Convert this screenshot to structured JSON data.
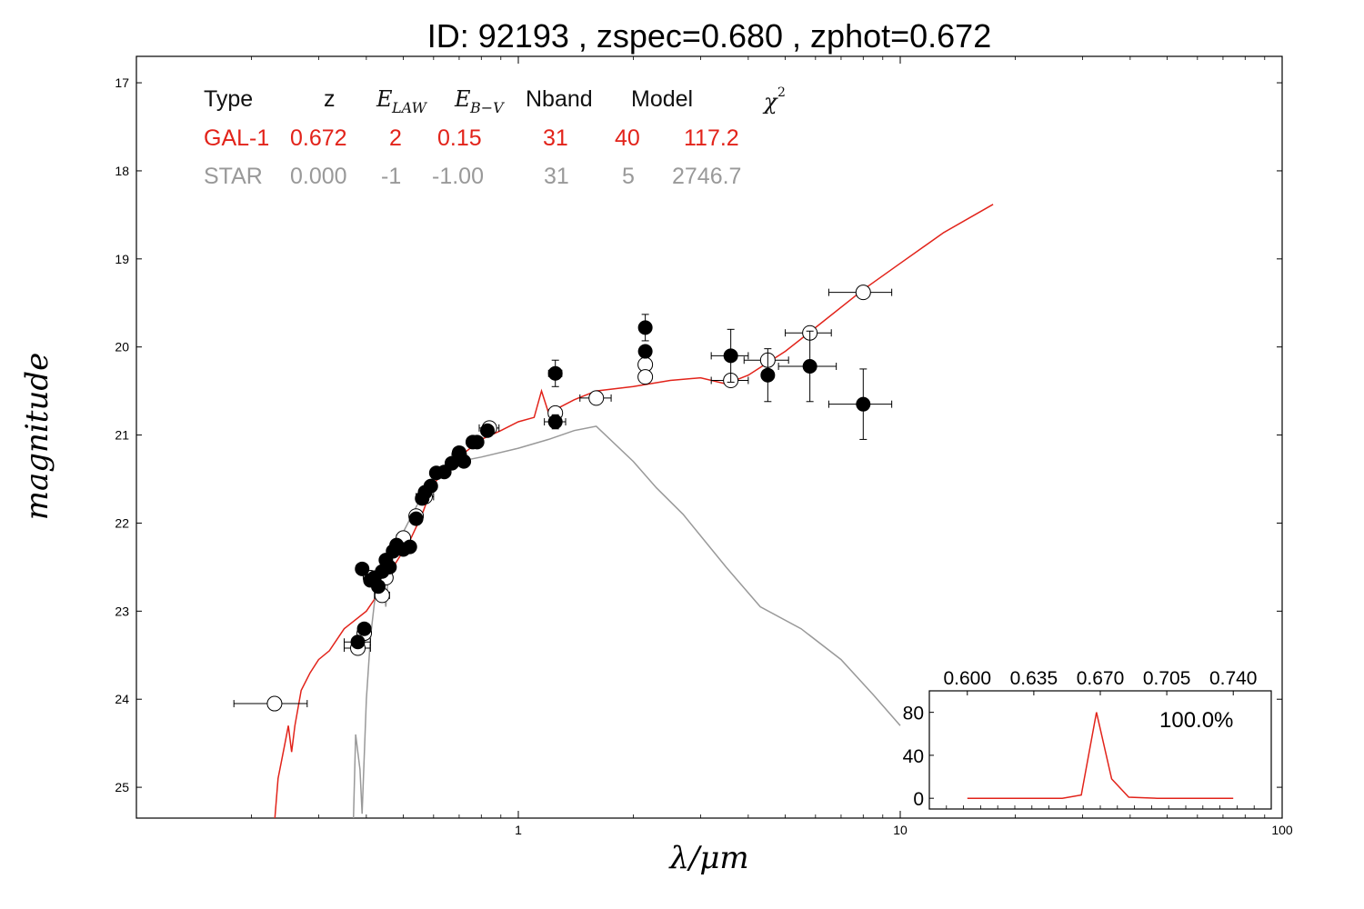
{
  "title": "ID:  92193 , zspec=0.680 , zphot=0.672",
  "colors": {
    "galaxy": "#e2231a",
    "star": "#999999",
    "points": "#000000"
  },
  "table": {
    "headers": [
      "Type",
      "z",
      "E_LAW",
      "E_B−V",
      "Nband",
      "Model",
      "χ²"
    ],
    "rows": [
      {
        "name": "galaxy",
        "color": "#e2231a",
        "cells": [
          "GAL-1",
          "0.672",
          "2",
          "0.15",
          "31",
          "40",
          "117.2"
        ]
      },
      {
        "name": "star",
        "color": "#999999",
        "cells": [
          "STAR",
          "0.000",
          "-1",
          "-1.00",
          "31",
          "5",
          "2746.7"
        ]
      }
    ]
  },
  "chart_data": [
    {
      "type": "scatter",
      "xlabel": "λ/μm",
      "ylabel": "magnitude",
      "xscale": "log",
      "xlim": [
        0.1,
        100
      ],
      "ylim": [
        25.35,
        16.7
      ],
      "x_ticks": [
        1,
        10,
        100
      ],
      "y_ticks": [
        17,
        18,
        19,
        20,
        21,
        22,
        23,
        24,
        25
      ],
      "observed": [
        {
          "x": 0.38,
          "y": 23.35
        },
        {
          "x": 0.39,
          "y": 22.52
        },
        {
          "x": 0.395,
          "y": 23.2
        },
        {
          "x": 0.41,
          "y": 22.65
        },
        {
          "x": 0.42,
          "y": 22.62
        },
        {
          "x": 0.43,
          "y": 22.72
        },
        {
          "x": 0.44,
          "y": 22.55
        },
        {
          "x": 0.45,
          "y": 22.42
        },
        {
          "x": 0.46,
          "y": 22.5
        },
        {
          "x": 0.47,
          "y": 22.32
        },
        {
          "x": 0.48,
          "y": 22.25
        },
        {
          "x": 0.5,
          "y": 22.3
        },
        {
          "x": 0.52,
          "y": 22.27
        },
        {
          "x": 0.54,
          "y": 21.95
        },
        {
          "x": 0.56,
          "y": 21.72
        },
        {
          "x": 0.57,
          "y": 21.65
        },
        {
          "x": 0.59,
          "y": 21.58
        },
        {
          "x": 0.61,
          "y": 21.43
        },
        {
          "x": 0.64,
          "y": 21.42
        },
        {
          "x": 0.67,
          "y": 21.32
        },
        {
          "x": 0.7,
          "y": 21.2
        },
        {
          "x": 0.72,
          "y": 21.3
        },
        {
          "x": 0.76,
          "y": 21.08
        },
        {
          "x": 0.78,
          "y": 21.08
        },
        {
          "x": 0.83,
          "y": 20.95
        },
        {
          "x": 1.25,
          "y": 20.3
        },
        {
          "x": 1.25,
          "y": 20.85
        },
        {
          "x": 2.15,
          "y": 19.78
        },
        {
          "x": 2.15,
          "y": 20.05
        },
        {
          "x": 3.6,
          "y": 20.1
        },
        {
          "x": 4.5,
          "y": 20.32
        },
        {
          "x": 5.8,
          "y": 20.22
        },
        {
          "x": 8.0,
          "y": 20.65
        }
      ],
      "observed_yerr": [
        0.0,
        0.0,
        0.0,
        0.0,
        0.0,
        0.0,
        0.0,
        0.0,
        0.0,
        0.0,
        0.0,
        0.0,
        0.0,
        0.0,
        0.0,
        0.0,
        0.0,
        0.0,
        0.0,
        0.0,
        0.0,
        0.0,
        0.0,
        0.0,
        0.0,
        0.15,
        0.08,
        0.15,
        0.0,
        0.3,
        0.3,
        0.4,
        0.4
      ],
      "observed_xerr": [
        0.03,
        0.0,
        0.0,
        0.0,
        0.0,
        0.0,
        0.0,
        0.0,
        0.0,
        0.0,
        0.0,
        0.0,
        0.0,
        0.0,
        0.0,
        0.0,
        0.0,
        0.0,
        0.0,
        0.0,
        0.0,
        0.0,
        0.0,
        0.0,
        0.0,
        0.05,
        0.08,
        0.0,
        0.0,
        0.4,
        0.0,
        1.0,
        1.5
      ],
      "model_magnitudes": [
        {
          "x": 0.23,
          "y": 24.05,
          "xerr": 0.05
        },
        {
          "x": 0.38,
          "y": 23.42,
          "xerr": 0.03
        },
        {
          "x": 0.395,
          "y": 23.25,
          "xerr": 0.0
        },
        {
          "x": 0.41,
          "y": 22.62,
          "xerr": 0.0
        },
        {
          "x": 0.44,
          "y": 22.82,
          "xerr": 0.02
        },
        {
          "x": 0.45,
          "y": 22.62,
          "xerr": 0.0
        },
        {
          "x": 0.5,
          "y": 22.17,
          "xerr": 0.02
        },
        {
          "x": 0.54,
          "y": 21.92,
          "xerr": 0.0
        },
        {
          "x": 0.57,
          "y": 21.7,
          "xerr": 0.03
        },
        {
          "x": 0.7,
          "y": 21.22,
          "xerr": 0.02
        },
        {
          "x": 0.84,
          "y": 20.92,
          "xerr": 0.05
        },
        {
          "x": 1.25,
          "y": 20.75,
          "xerr": 0.05
        },
        {
          "x": 1.6,
          "y": 20.58,
          "xerr": 0.15
        },
        {
          "x": 2.15,
          "y": 20.2,
          "xerr": 0.0
        },
        {
          "x": 2.15,
          "y": 20.34,
          "xerr": 0.0
        },
        {
          "x": 3.6,
          "y": 20.38,
          "xerr": 0.4
        },
        {
          "x": 4.5,
          "y": 20.15,
          "xerr": 0.6
        },
        {
          "x": 5.8,
          "y": 19.84,
          "xerr": 0.8
        },
        {
          "x": 8.0,
          "y": 19.38,
          "xerr": 1.5
        }
      ],
      "series": [
        {
          "name": "GAL-1",
          "color": "#e2231a",
          "points": [
            [
              0.23,
              25.4
            ],
            [
              0.235,
              24.9
            ],
            [
              0.245,
              24.5
            ],
            [
              0.25,
              24.3
            ],
            [
              0.255,
              24.6
            ],
            [
              0.26,
              24.3
            ],
            [
              0.27,
              23.9
            ],
            [
              0.285,
              23.7
            ],
            [
              0.3,
              23.55
            ],
            [
              0.32,
              23.45
            ],
            [
              0.35,
              23.2
            ],
            [
              0.4,
              23.0
            ],
            [
              0.43,
              22.8
            ],
            [
              0.47,
              22.5
            ],
            [
              0.52,
              22.2
            ],
            [
              0.56,
              21.9
            ],
            [
              0.6,
              21.55
            ],
            [
              0.65,
              21.4
            ],
            [
              0.7,
              21.25
            ],
            [
              0.8,
              21.05
            ],
            [
              0.9,
              20.95
            ],
            [
              1.0,
              20.85
            ],
            [
              1.1,
              20.8
            ],
            [
              1.15,
              20.5
            ],
            [
              1.2,
              20.75
            ],
            [
              1.4,
              20.6
            ],
            [
              1.6,
              20.5
            ],
            [
              2.0,
              20.45
            ],
            [
              2.5,
              20.38
            ],
            [
              3.0,
              20.35
            ],
            [
              3.5,
              20.42
            ],
            [
              4.0,
              20.32
            ],
            [
              5.0,
              20.05
            ],
            [
              6.0,
              19.78
            ],
            [
              8.0,
              19.35
            ],
            [
              10.0,
              19.05
            ],
            [
              13.0,
              18.7
            ],
            [
              17.5,
              18.38
            ]
          ]
        },
        {
          "name": "STAR",
          "color": "#999999",
          "points": [
            [
              0.37,
              25.4
            ],
            [
              0.375,
              24.4
            ],
            [
              0.385,
              24.8
            ],
            [
              0.39,
              25.3
            ],
            [
              0.4,
              24.0
            ],
            [
              0.41,
              23.3
            ],
            [
              0.42,
              22.9
            ],
            [
              0.44,
              22.6
            ],
            [
              0.45,
              22.95
            ],
            [
              0.46,
              22.4
            ],
            [
              0.5,
              22.1
            ],
            [
              0.55,
              21.75
            ],
            [
              0.6,
              21.45
            ],
            [
              0.7,
              21.3
            ],
            [
              0.8,
              21.25
            ],
            [
              1.0,
              21.15
            ],
            [
              1.2,
              21.05
            ],
            [
              1.4,
              20.95
            ],
            [
              1.6,
              20.9
            ],
            [
              2.0,
              21.3
            ],
            [
              2.3,
              21.6
            ],
            [
              2.7,
              21.9
            ],
            [
              3.5,
              22.5
            ],
            [
              4.3,
              22.95
            ],
            [
              5.5,
              23.2
            ],
            [
              7.0,
              23.55
            ],
            [
              8.5,
              23.95
            ],
            [
              10.0,
              24.3
            ]
          ]
        }
      ]
    },
    {
      "type": "line",
      "name": "redshift-probability-inset",
      "color": "#e2231a",
      "x_ticks": [
        0.6,
        0.635,
        0.67,
        0.705,
        0.74
      ],
      "x_tick_labels": [
        "0.600",
        "0.635",
        "0.670",
        "0.705",
        "0.740"
      ],
      "y_ticks": [
        0,
        40,
        80
      ],
      "xlim": [
        0.58,
        0.76
      ],
      "ylim": [
        -10,
        100
      ],
      "x": [
        0.6,
        0.65,
        0.66,
        0.668,
        0.676,
        0.685,
        0.7,
        0.74
      ],
      "y": [
        0,
        0,
        3,
        80,
        18,
        1,
        0,
        0
      ],
      "annotation": "100.0%"
    }
  ]
}
